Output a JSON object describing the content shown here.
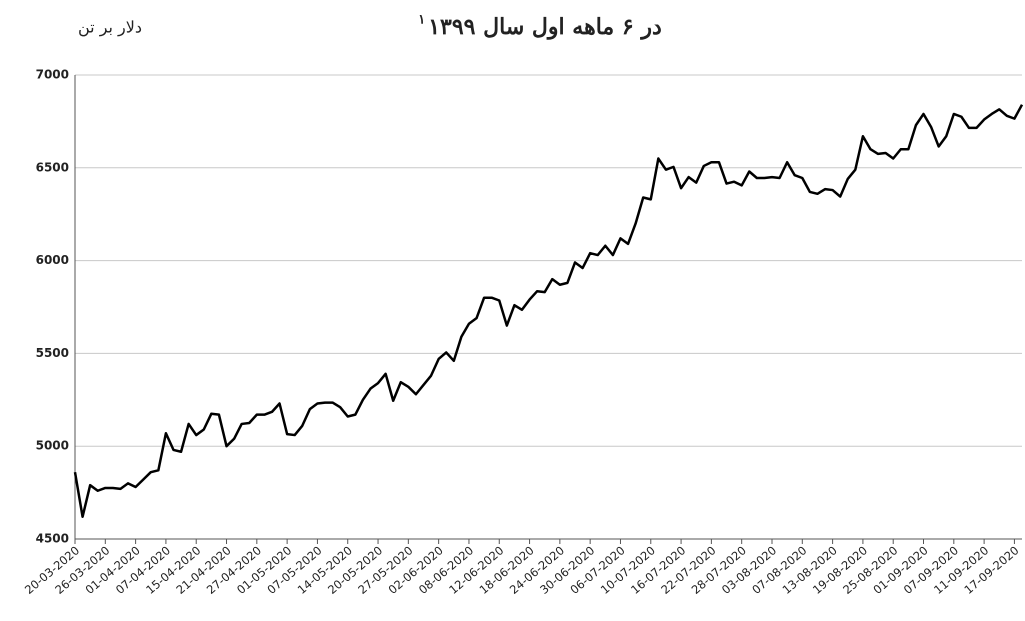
{
  "chart_data": {
    "type": "line",
    "title": "در ۶ ماهه اول سال ۱۳۹۹",
    "title_note": "۱",
    "unit_label": "دلار بر تن",
    "categories": [
      "20-03-2020",
      null,
      null,
      null,
      "26-03-2020",
      null,
      null,
      null,
      "01-04-2020",
      null,
      null,
      null,
      "07-04-2020",
      null,
      null,
      null,
      "15-04-2020",
      null,
      null,
      null,
      "21-04-2020",
      null,
      null,
      null,
      "27-04-2020",
      null,
      null,
      null,
      "01-05-2020",
      null,
      null,
      null,
      "07-05-2020",
      null,
      null,
      null,
      "14-05-2020",
      null,
      null,
      null,
      "20-05-2020",
      null,
      null,
      null,
      "27-05-2020",
      null,
      null,
      null,
      "02-06-2020",
      null,
      null,
      null,
      "08-06-2020",
      null,
      null,
      null,
      "12-06-2020",
      null,
      null,
      null,
      "18-06-2020",
      null,
      null,
      null,
      "24-06-2020",
      null,
      null,
      null,
      "30-06-2020",
      null,
      null,
      null,
      "06-07-2020",
      null,
      null,
      null,
      "10-07-2020",
      null,
      null,
      null,
      "16-07-2020",
      null,
      null,
      null,
      "22-07-2020",
      null,
      null,
      null,
      "28-07-2020",
      null,
      null,
      null,
      "03-08-2020",
      null,
      null,
      null,
      "07-08-2020",
      null,
      null,
      null,
      "13-08-2020",
      null,
      null,
      null,
      "19-08-2020",
      null,
      null,
      null,
      "25-08-2020",
      null,
      null,
      null,
      "01-09-2020",
      null,
      null,
      null,
      "07-09-2020",
      null,
      null,
      null,
      "11-09-2020",
      null,
      null,
      null,
      "17-09-2020",
      null
    ],
    "values": [
      4860,
      4620,
      4790,
      4760,
      4775,
      4775,
      4770,
      4800,
      4780,
      4820,
      4860,
      4870,
      5070,
      4980,
      4970,
      5120,
      5060,
      5090,
      5175,
      5170,
      5000,
      5040,
      5120,
      5125,
      5170,
      5170,
      5185,
      5230,
      5065,
      5060,
      5110,
      5200,
      5230,
      5235,
      5235,
      5210,
      5160,
      5170,
      5250,
      5310,
      5340,
      5390,
      5245,
      5345,
      5320,
      5280,
      5330,
      5380,
      5470,
      5505,
      5460,
      5590,
      5660,
      5690,
      5800,
      5800,
      5785,
      5650,
      5760,
      5735,
      5790,
      5835,
      5830,
      5900,
      5870,
      5880,
      5990,
      5960,
      6040,
      6030,
      6080,
      6030,
      6120,
      6090,
      6200,
      6340,
      6330,
      6550,
      6490,
      6505,
      6390,
      6450,
      6420,
      6510,
      6530,
      6530,
      6415,
      6425,
      6405,
      6480,
      6445,
      6445,
      6450,
      6445,
      6530,
      6460,
      6445,
      6370,
      6360,
      6385,
      6380,
      6345,
      6440,
      6490,
      6670,
      6600,
      6575,
      6580,
      6550,
      6600,
      6600,
      6730,
      6790,
      6720,
      6615,
      6670,
      6790,
      6775,
      6715,
      6715,
      6760,
      6790,
      6815,
      6780,
      6765,
      6840
    ],
    "color": "#000000",
    "ylim": [
      4500,
      7000
    ],
    "yticks": [
      4500,
      5000,
      5500,
      6000,
      6500,
      7000
    ],
    "grid": true
  }
}
